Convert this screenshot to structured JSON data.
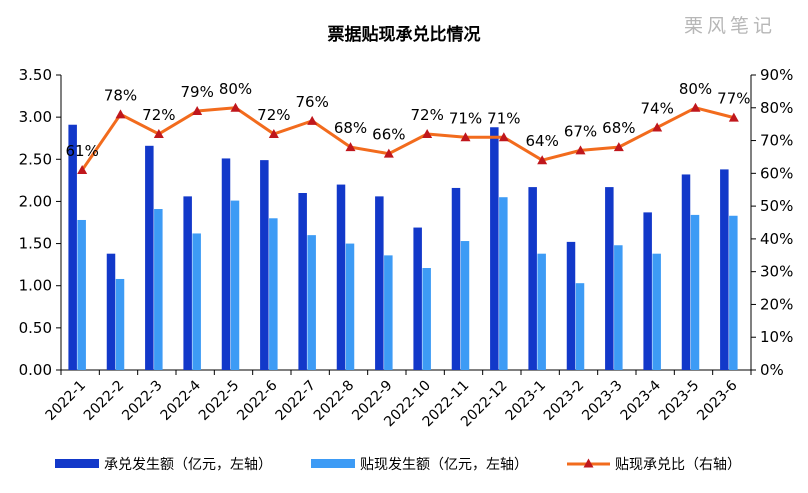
{
  "chart_data": {
    "type": "bar",
    "title": "票据贴现承兑比情况",
    "watermark": "栗风笔记",
    "categories": [
      "2022-1",
      "2022-2",
      "2022-3",
      "2022-4",
      "2022-5",
      "2022-6",
      "2022-7",
      "2022-8",
      "2022-9",
      "2022-10",
      "2022-11",
      "2022-12",
      "2023-1",
      "2023-2",
      "2023-3",
      "2023-4",
      "2023-5",
      "2023-6"
    ],
    "series": [
      {
        "name": "承兑发生额（亿元，左轴）",
        "type": "bar",
        "axis": "left",
        "color": "#1238c9",
        "values": [
          2.91,
          1.38,
          2.66,
          2.06,
          2.51,
          2.49,
          2.1,
          2.2,
          2.06,
          1.69,
          2.16,
          2.88,
          2.17,
          1.52,
          2.17,
          1.87,
          2.32,
          2.38
        ]
      },
      {
        "name": "贴现发生额（亿元，左轴）",
        "type": "bar",
        "axis": "left",
        "color": "#3d9bf5",
        "values": [
          1.78,
          1.08,
          1.91,
          1.62,
          2.01,
          1.8,
          1.6,
          1.5,
          1.36,
          1.21,
          1.53,
          2.05,
          1.38,
          1.03,
          1.48,
          1.38,
          1.84,
          1.83
        ]
      },
      {
        "name": "贴现承兑比（右轴）",
        "type": "line",
        "axis": "right",
        "color": "#f26b1d",
        "marker_color": "#c0171c",
        "values": [
          61,
          78,
          72,
          79,
          80,
          72,
          76,
          68,
          66,
          72,
          71,
          71,
          64,
          67,
          68,
          74,
          80,
          77
        ],
        "labels": [
          "61%",
          "78%",
          "72%",
          "79%",
          "80%",
          "72%",
          "76%",
          "68%",
          "66%",
          "72%",
          "71%",
          "71%",
          "64%",
          "67%",
          "68%",
          "74%",
          "80%",
          "77%"
        ]
      }
    ],
    "y_left": {
      "min": 0,
      "max": 3.5,
      "step": 0.5,
      "ticks": [
        "0.00",
        "0.50",
        "1.00",
        "1.50",
        "2.00",
        "2.50",
        "3.00",
        "3.50"
      ]
    },
    "y_right": {
      "min": 0,
      "max": 90,
      "step": 10,
      "ticks": [
        "0%",
        "10%",
        "20%",
        "30%",
        "40%",
        "50%",
        "60%",
        "70%",
        "80%",
        "90%"
      ]
    },
    "grid": false,
    "legend_position": "bottom"
  }
}
